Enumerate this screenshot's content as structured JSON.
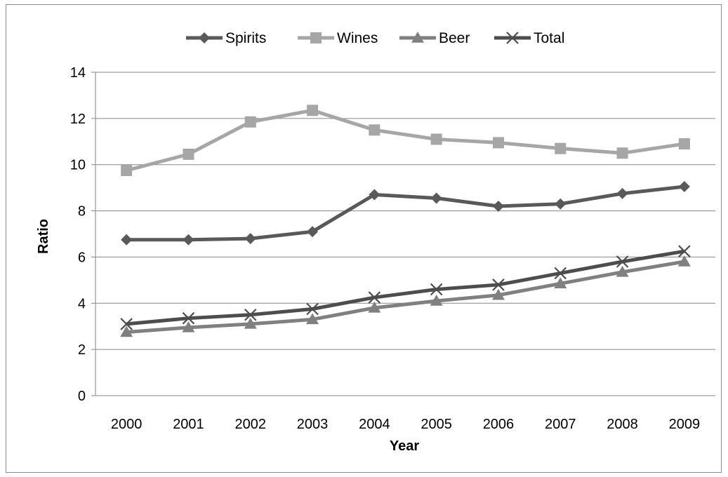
{
  "chart_data": {
    "type": "line",
    "title": "",
    "xlabel": "Year",
    "ylabel": "Ratio",
    "ylim": [
      0,
      14
    ],
    "yticks": [
      0,
      2,
      4,
      6,
      8,
      10,
      12,
      14
    ],
    "categories": [
      "2000",
      "2001",
      "2002",
      "2003",
      "2004",
      "2005",
      "2006",
      "2007",
      "2008",
      "2009"
    ],
    "grid": true,
    "legend_position": "top",
    "series": [
      {
        "name": "Spirits",
        "marker": "diamond",
        "color": "#595959",
        "values": [
          6.75,
          6.75,
          6.8,
          7.1,
          8.7,
          8.55,
          8.2,
          8.3,
          8.75,
          9.05
        ]
      },
      {
        "name": "Wines",
        "marker": "square",
        "color": "#a6a6a6",
        "values": [
          9.75,
          10.45,
          11.85,
          12.35,
          11.5,
          11.1,
          10.95,
          10.7,
          10.5,
          10.9
        ]
      },
      {
        "name": "Beer",
        "marker": "triangle",
        "color": "#808080",
        "values": [
          2.75,
          2.95,
          3.1,
          3.3,
          3.8,
          4.1,
          4.35,
          4.85,
          5.35,
          5.8
        ]
      },
      {
        "name": "Total",
        "marker": "x",
        "color": "#4d4d4d",
        "values": [
          3.1,
          3.35,
          3.5,
          3.75,
          4.25,
          4.6,
          4.8,
          5.3,
          5.8,
          6.25
        ]
      }
    ]
  }
}
